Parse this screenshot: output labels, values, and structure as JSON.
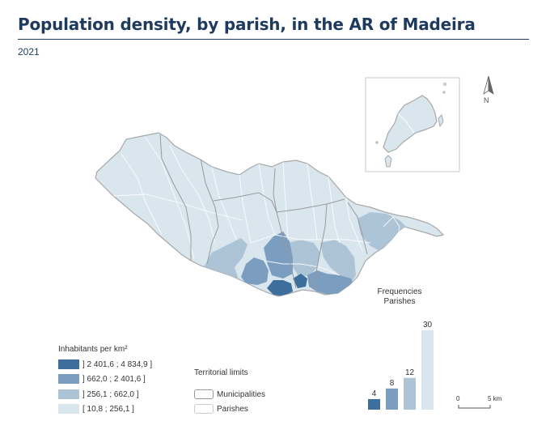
{
  "header": {
    "title": "Population density, by parish, in the AR of Madeira",
    "subtitle": "2021"
  },
  "colors": {
    "class1": "#3d6e9c",
    "class2": "#7a9dc0",
    "class3": "#adc4d6",
    "class4": "#d9e6ee",
    "boundary": "#b8b8b8",
    "title": "#1f3a5f"
  },
  "legend": {
    "title": "Inhabitants per km²",
    "items": [
      {
        "label": "] 2 401,6 ; 4 834,9 ]",
        "color": "#3d6e9c"
      },
      {
        "label": "] 662,0 ; 2 401,6 ]",
        "color": "#7a9dc0"
      },
      {
        "label": "] 256,1 ; 662,0 ]",
        "color": "#adc4d6"
      },
      {
        "label": "[ 10,8 ; 256,1 ]",
        "color": "#d9e6ee"
      }
    ]
  },
  "territorial_limits": {
    "title": "Territorial limits",
    "items": [
      "Municipalities",
      "Parishes"
    ]
  },
  "chart_data": {
    "type": "bar",
    "title": "Frequencies\nParishes",
    "title_lines": [
      "Frequencies",
      "Parishes"
    ],
    "categories": [
      "] 2 401,6 ; 4 834,9 ]",
      "] 662,0 ; 2 401,6 ]",
      "] 256,1 ; 662,0 ]",
      "[ 10,8 ; 256,1 ]"
    ],
    "values": [
      4,
      8,
      12,
      30
    ],
    "colors": [
      "#3d6e9c",
      "#7a9dc0",
      "#adc4d6",
      "#d9e6ee"
    ],
    "ylim": [
      0,
      30
    ]
  },
  "north_arrow": {
    "label": "N"
  },
  "scale_bar": {
    "start": "0",
    "end": "5 km"
  }
}
